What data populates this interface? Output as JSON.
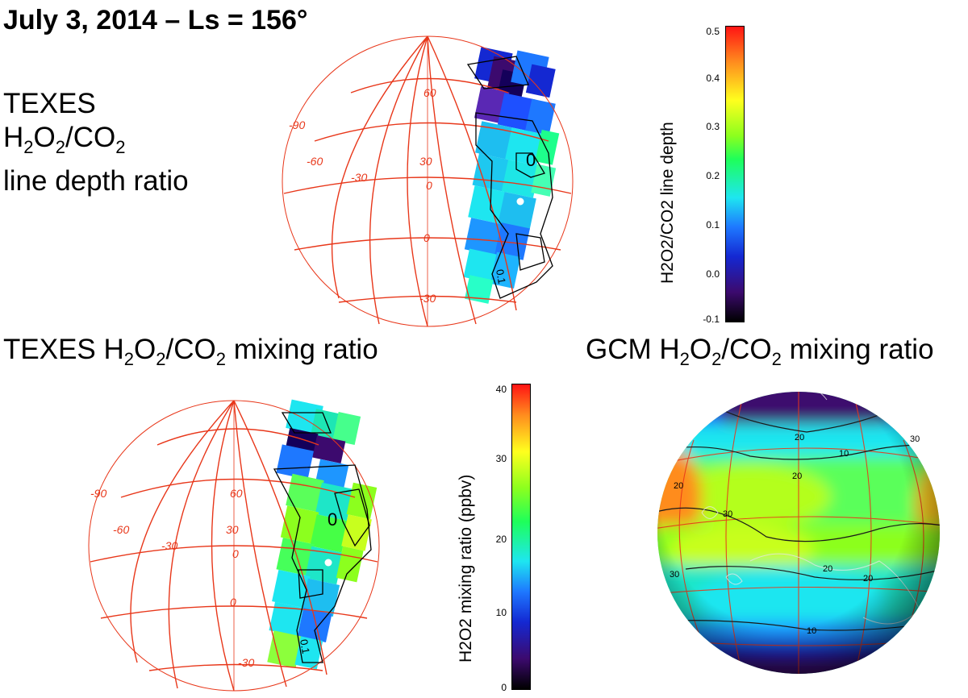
{
  "title": "July 3, 2014 – Ls = 156°",
  "top_left_label": {
    "line1": "TEXES",
    "line2_parts": [
      "H",
      "2",
      "O",
      "2",
      "/CO",
      "2"
    ],
    "line3": "line  depth ratio"
  },
  "caption_texes_mixing": {
    "parts": [
      "TEXES H",
      "2",
      "O",
      "2",
      "/CO",
      "2",
      " mixing ratio"
    ]
  },
  "caption_gcm_mixing": {
    "parts": [
      "GCM H",
      "2",
      "O",
      "2",
      "/CO",
      "2",
      " mixing ratio"
    ]
  },
  "globe_grid_labels": {
    "lat": [
      "60",
      "30",
      "0",
      "-30"
    ],
    "lon": [
      "-90",
      "-60",
      "-30",
      "0"
    ]
  },
  "contour_labels": {
    "zero": "0",
    "tenth": "0.1"
  },
  "gcm_contour_labels": [
    "10",
    "20",
    "30",
    "20",
    "30",
    "20",
    "20",
    "20",
    "10",
    "30"
  ],
  "colorbar_top": {
    "label": "H2O2/CO2 line depth",
    "ticks": [
      "0.5",
      "0.4",
      "0.3",
      "0.2",
      "0.1",
      "0.0",
      "-0.1"
    ]
  },
  "colorbar_bottom": {
    "label": "H2O2 mixing ratio (ppbv)",
    "ticks": [
      "40",
      "30",
      "20",
      "10",
      "0"
    ]
  },
  "colors": {
    "grid": "#e8371a",
    "palette": [
      "#000000",
      "#3c0a6e",
      "#1428d2",
      "#1e78ff",
      "#1ee6f0",
      "#1eff5a",
      "#8cff1e",
      "#ffff1e",
      "#ff8c1e",
      "#ff1414"
    ]
  }
}
